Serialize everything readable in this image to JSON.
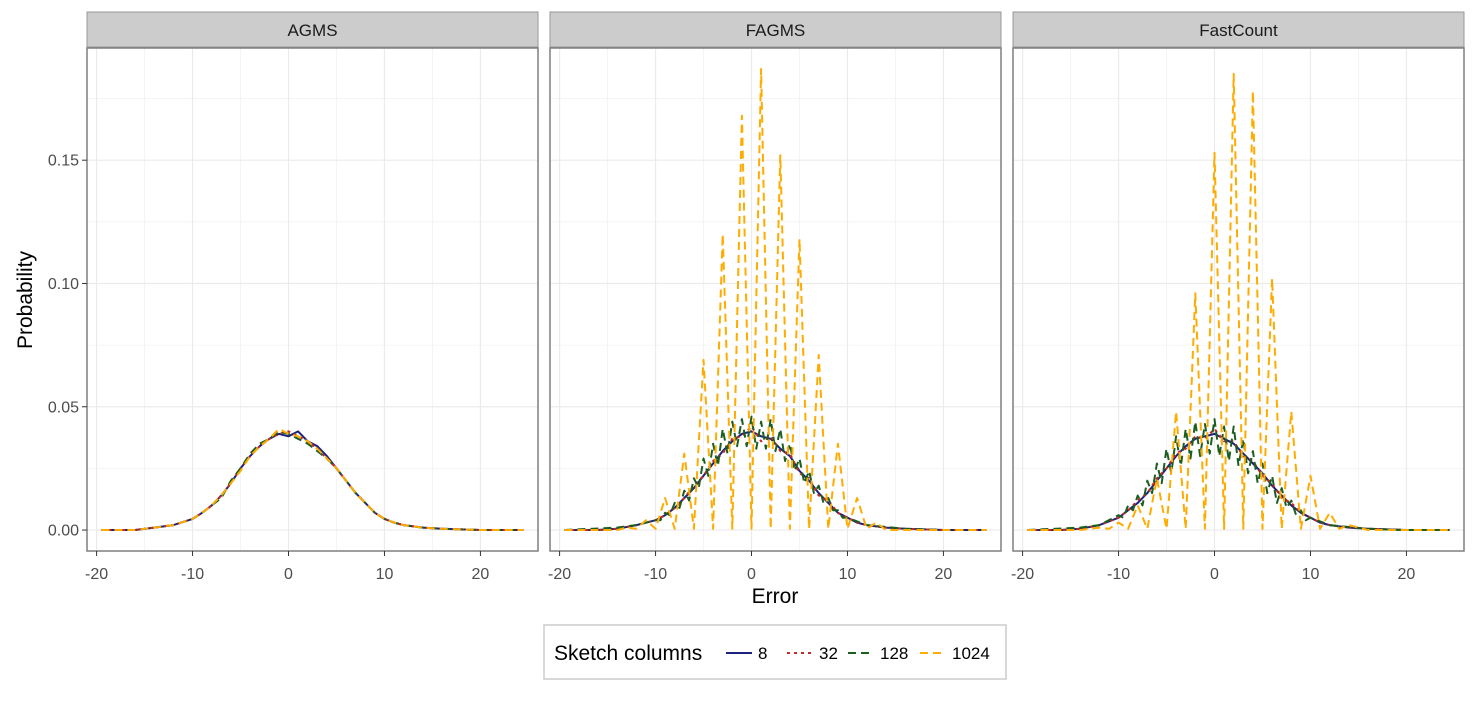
{
  "chart_data": {
    "type": "line",
    "xlabel": "Error",
    "ylabel": "Probability",
    "xlim": [
      -21,
      26
    ],
    "ylim": [
      -0.0085,
      0.1955
    ],
    "x_ticks": [
      -20,
      -10,
      0,
      10,
      20
    ],
    "x_tick_labels": [
      "-20",
      "-10",
      "0",
      "10",
      "20"
    ],
    "y_ticks": [
      0.0,
      0.05,
      0.1,
      0.15
    ],
    "y_tick_labels": [
      "0.00",
      "0.05",
      "0.10",
      "0.15"
    ],
    "grid": true,
    "legend": {
      "title": "Sketch columns",
      "placement": "bottom",
      "entries": [
        {
          "label": "8",
          "color": "#1a237e",
          "dash": "solid"
        },
        {
          "label": "32",
          "color": "#c62828",
          "dash": "dotted"
        },
        {
          "label": "128",
          "color": "#1b5e20",
          "dash": "dashed"
        },
        {
          "label": "1024",
          "color": "#ffab00",
          "dash": "dashed"
        }
      ]
    },
    "facets": [
      {
        "title": "AGMS",
        "series": [
          {
            "name": "8",
            "x": [
              -19.5,
              -16,
              -14,
              -12,
              -10,
              -9,
              -8,
              -7,
              -6,
              -5,
              -4,
              -3,
              -2,
              -1,
              0,
              1,
              2,
              3,
              4,
              5,
              6,
              7,
              8,
              9,
              10,
              11,
              12,
              14,
              16,
              20,
              24.5
            ],
            "y": [
              0,
              0,
              0.001,
              0.002,
              0.0045,
              0.007,
              0.01,
              0.014,
              0.019,
              0.025,
              0.03,
              0.034,
              0.037,
              0.039,
              0.038,
              0.04,
              0.036,
              0.034,
              0.03,
              0.025,
              0.02,
              0.015,
              0.011,
              0.007,
              0.0045,
              0.003,
              0.002,
              0.001,
              0.0005,
              0,
              0
            ]
          },
          {
            "name": "32",
            "x": [
              -19.5,
              -16,
              -14,
              -12,
              -10,
              -9,
              -8,
              -7,
              -6,
              -5,
              -4,
              -3,
              -2,
              -1,
              0,
              1,
              2,
              3,
              4,
              5,
              6,
              7,
              8,
              9,
              10,
              11,
              12,
              14,
              16,
              20,
              24.5
            ],
            "y": [
              0,
              0,
              0.001,
              0.002,
              0.0045,
              0.007,
              0.01,
              0.014,
              0.019,
              0.025,
              0.03,
              0.034,
              0.037,
              0.039,
              0.04,
              0.038,
              0.036,
              0.033,
              0.029,
              0.025,
              0.02,
              0.015,
              0.011,
              0.007,
              0.0045,
              0.003,
              0.002,
              0.001,
              0.0005,
              0,
              0
            ]
          },
          {
            "name": "128",
            "x": [
              -19.5,
              -16,
              -14,
              -12,
              -10,
              -9,
              -8,
              -7,
              -6,
              -5,
              -4,
              -3,
              -2,
              -1,
              0,
              1,
              2,
              3,
              4,
              5,
              6,
              7,
              8,
              9,
              10,
              11,
              12,
              14,
              16,
              20,
              24.5
            ],
            "y": [
              0,
              0,
              0.001,
              0.002,
              0.0045,
              0.007,
              0.01,
              0.013,
              0.02,
              0.025,
              0.031,
              0.035,
              0.037,
              0.04,
              0.039,
              0.037,
              0.035,
              0.032,
              0.029,
              0.025,
              0.02,
              0.015,
              0.011,
              0.007,
              0.0045,
              0.003,
              0.002,
              0.001,
              0.0005,
              0,
              0
            ]
          },
          {
            "name": "1024",
            "x": [
              -19.5,
              -16,
              -14,
              -12,
              -10,
              -9,
              -8,
              -7,
              -6,
              -5,
              -4,
              -3,
              -2,
              -1,
              0,
              1,
              2,
              3,
              4,
              5,
              6,
              7,
              8,
              9,
              10,
              11,
              12,
              14,
              16,
              20,
              24.5
            ],
            "y": [
              0,
              0,
              0.001,
              0.002,
              0.0045,
              0.007,
              0.01,
              0.014,
              0.019,
              0.024,
              0.03,
              0.034,
              0.037,
              0.041,
              0.039,
              0.038,
              0.036,
              0.033,
              0.029,
              0.025,
              0.02,
              0.015,
              0.011,
              0.007,
              0.0045,
              0.003,
              0.002,
              0.001,
              0.0005,
              0,
              0
            ]
          }
        ]
      },
      {
        "title": "FAGMS",
        "series": [
          {
            "name": "8",
            "x": [
              -19.5,
              -16,
              -14,
              -12,
              -10,
              -9,
              -8,
              -7,
              -6,
              -5,
              -4,
              -3,
              -2,
              -1,
              0,
              1,
              2,
              3,
              4,
              5,
              6,
              7,
              8,
              9,
              10,
              11,
              12,
              14,
              16,
              20,
              24.5
            ],
            "y": [
              0,
              0,
              0.0005,
              0.002,
              0.004,
              0.006,
              0.009,
              0.013,
              0.017,
              0.022,
              0.027,
              0.032,
              0.036,
              0.039,
              0.04,
              0.038,
              0.037,
              0.033,
              0.03,
              0.024,
              0.02,
              0.015,
              0.011,
              0.007,
              0.005,
              0.003,
              0.002,
              0.001,
              0.0005,
              0,
              0
            ]
          },
          {
            "name": "32",
            "x": [
              -19.5,
              -16,
              -14,
              -12,
              -10,
              -9,
              -8,
              -7,
              -6,
              -5,
              -4,
              -3,
              -2,
              -1,
              0,
              1,
              2,
              3,
              4,
              5,
              6,
              7,
              8,
              9,
              10,
              11,
              12,
              14,
              16,
              20,
              24.5
            ],
            "y": [
              0,
              0,
              0.0005,
              0.002,
              0.004,
              0.006,
              0.009,
              0.013,
              0.018,
              0.022,
              0.028,
              0.031,
              0.037,
              0.038,
              0.042,
              0.036,
              0.038,
              0.032,
              0.031,
              0.023,
              0.021,
              0.014,
              0.012,
              0.007,
              0.005,
              0.003,
              0.002,
              0.001,
              0.0005,
              0,
              0
            ]
          },
          {
            "name": "128",
            "x": [
              -19.5,
              -14,
              -12,
              -10,
              -9.5,
              -9,
              -8.5,
              -8,
              -7.5,
              -7,
              -6.5,
              -6,
              -5.5,
              -5,
              -4.5,
              -4,
              -3.5,
              -3,
              -2.5,
              -2,
              -1.5,
              -1,
              -0.5,
              0,
              0.5,
              1,
              1.5,
              2,
              2.5,
              3,
              3.5,
              4,
              4.5,
              5,
              5.5,
              6,
              6.5,
              7,
              7.5,
              8,
              8.5,
              9,
              9.5,
              10,
              12,
              16,
              20,
              24.5
            ],
            "y": [
              0,
              0.001,
              0.002,
              0.004,
              0.004,
              0.007,
              0.006,
              0.011,
              0.009,
              0.016,
              0.012,
              0.021,
              0.017,
              0.029,
              0.022,
              0.035,
              0.026,
              0.041,
              0.031,
              0.044,
              0.034,
              0.045,
              0.034,
              0.046,
              0.033,
              0.044,
              0.033,
              0.045,
              0.032,
              0.041,
              0.028,
              0.035,
              0.024,
              0.029,
              0.019,
              0.024,
              0.015,
              0.018,
              0.011,
              0.013,
              0.008,
              0.008,
              0.005,
              0.005,
              0.002,
              0.0005,
              0,
              0
            ]
          },
          {
            "name": "1024",
            "x": [
              -19.5,
              -14,
              -13,
              -12,
              -11,
              -10,
              -9,
              -8,
              -7,
              -6,
              -5,
              -4,
              -3,
              -2,
              -1,
              0,
              1,
              2,
              3,
              4,
              5,
              6,
              7,
              8,
              9,
              10,
              11,
              12,
              13,
              14,
              16,
              20,
              24.5
            ],
            "y": [
              0,
              0,
              0.001,
              0.0005,
              0.004,
              0.0005,
              0.013,
              0.0005,
              0.031,
              0.0005,
              0.069,
              0.0005,
              0.12,
              0.0005,
              0.168,
              0.0005,
              0.187,
              0.0005,
              0.152,
              0.0005,
              0.118,
              0.0005,
              0.071,
              0.0005,
              0.035,
              0.0005,
              0.013,
              0.0005,
              0.003,
              0,
              0,
              0,
              0
            ]
          }
        ]
      },
      {
        "title": "FastCount",
        "series": [
          {
            "name": "8",
            "x": [
              -19.5,
              -16,
              -14,
              -12,
              -10,
              -9,
              -8,
              -7,
              -6,
              -5,
              -4,
              -3,
              -2,
              -1,
              0,
              1,
              2,
              3,
              4,
              5,
              6,
              7,
              8,
              9,
              10,
              11,
              12,
              14,
              16,
              20,
              24.5
            ],
            "y": [
              0,
              0,
              0.0005,
              0.002,
              0.005,
              0.008,
              0.011,
              0.015,
              0.02,
              0.025,
              0.03,
              0.034,
              0.037,
              0.038,
              0.039,
              0.037,
              0.035,
              0.031,
              0.027,
              0.023,
              0.018,
              0.014,
              0.01,
              0.007,
              0.005,
              0.003,
              0.002,
              0.001,
              0.0005,
              0,
              0
            ]
          },
          {
            "name": "32",
            "x": [
              -19.5,
              -16,
              -14,
              -12,
              -10,
              -9,
              -8,
              -7,
              -6,
              -5,
              -4,
              -3,
              -2,
              -1,
              0,
              1,
              2,
              3,
              4,
              5,
              6,
              7,
              8,
              9,
              10,
              11,
              12,
              14,
              16,
              20,
              24.5
            ],
            "y": [
              0,
              0,
              0.0005,
              0.002,
              0.005,
              0.008,
              0.012,
              0.015,
              0.021,
              0.025,
              0.031,
              0.033,
              0.038,
              0.037,
              0.041,
              0.036,
              0.036,
              0.03,
              0.028,
              0.022,
              0.019,
              0.013,
              0.011,
              0.007,
              0.005,
              0.003,
              0.002,
              0.001,
              0.0005,
              0,
              0
            ]
          },
          {
            "name": "128",
            "x": [
              -19.5,
              -14,
              -12,
              -10,
              -9.5,
              -9,
              -8.5,
              -8,
              -7.5,
              -7,
              -6.5,
              -6,
              -5.5,
              -5,
              -4.5,
              -4,
              -3.5,
              -3,
              -2.5,
              -2,
              -1.5,
              -1,
              -0.5,
              0,
              0.5,
              1,
              1.5,
              2,
              2.5,
              3,
              3.5,
              4,
              4.5,
              5,
              5.5,
              6,
              6.5,
              7,
              7.5,
              8,
              8.5,
              9,
              9.5,
              10,
              12,
              16,
              20,
              24.5
            ],
            "y": [
              0,
              0.001,
              0.002,
              0.006,
              0.005,
              0.01,
              0.008,
              0.014,
              0.01,
              0.02,
              0.015,
              0.027,
              0.019,
              0.033,
              0.023,
              0.038,
              0.026,
              0.041,
              0.029,
              0.044,
              0.03,
              0.043,
              0.031,
              0.045,
              0.03,
              0.042,
              0.028,
              0.042,
              0.026,
              0.037,
              0.023,
              0.032,
              0.019,
              0.027,
              0.015,
              0.022,
              0.011,
              0.017,
              0.009,
              0.012,
              0.006,
              0.008,
              0.004,
              0.005,
              0.002,
              0.0005,
              0,
              0
            ]
          },
          {
            "name": "1024",
            "x": [
              -19.5,
              -14,
              -13,
              -12,
              -11,
              -10,
              -9,
              -8,
              -7,
              -6,
              -5,
              -4,
              -3,
              -2,
              -1,
              0,
              1,
              2,
              3,
              4,
              5,
              6,
              7,
              8,
              9,
              10,
              11,
              12,
              13,
              14,
              16,
              20,
              24.5
            ],
            "y": [
              0,
              0,
              0.0005,
              0.001,
              0.0005,
              0.003,
              0.0005,
              0.01,
              0.0005,
              0.021,
              0.0005,
              0.048,
              0.0005,
              0.096,
              0.0005,
              0.153,
              0.0005,
              0.185,
              0.0005,
              0.178,
              0.0005,
              0.102,
              0.0005,
              0.048,
              0.0005,
              0.022,
              0.0005,
              0.007,
              0.0005,
              0.002,
              0,
              0,
              0
            ]
          }
        ]
      }
    ]
  }
}
